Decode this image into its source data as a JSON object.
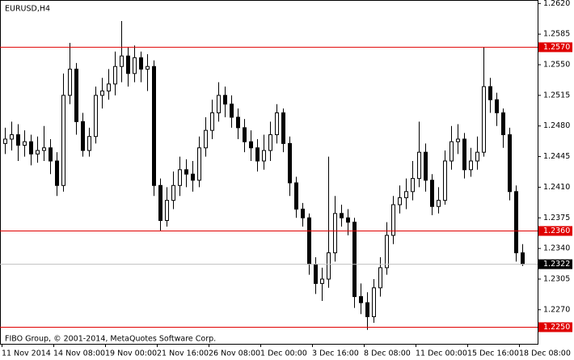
{
  "chart_data": {
    "type": "candlestick",
    "title": "EURUSD,H4",
    "footer": "FIBO Group, © 2001-2014, MetaQuotes Software Corp.",
    "categories": [
      "11 Nov 2014",
      null,
      null,
      null,
      null,
      null,
      null,
      null,
      "14 Nov 08:00",
      null,
      null,
      null,
      null,
      null,
      null,
      null,
      "19 Nov 00:00",
      null,
      null,
      null,
      null,
      null,
      null,
      null,
      "21 Nov 16:00",
      null,
      null,
      null,
      null,
      null,
      null,
      null,
      "26 Nov 08:00",
      null,
      null,
      null,
      null,
      null,
      null,
      null,
      "1 Dec 00:00",
      null,
      null,
      null,
      null,
      null,
      null,
      null,
      "3 Dec 16:00",
      null,
      null,
      null,
      null,
      null,
      null,
      null,
      "8 Dec 08:00",
      null,
      null,
      null,
      null,
      null,
      null,
      null,
      "11 Dec 00:00",
      null,
      null,
      null,
      null,
      null,
      null,
      null,
      "15 Dec 16:00",
      null,
      null,
      null,
      null,
      null,
      null,
      null,
      "18 Dec 08:00"
    ],
    "open": [
      1.246,
      1.2465,
      1.247,
      1.2458,
      1.2462,
      1.2448,
      1.2452,
      1.2455,
      1.244,
      1.2412,
      1.2515,
      1.2545,
      1.2485,
      1.2452,
      1.2468,
      1.2515,
      1.252,
      1.2528,
      1.2548,
      1.256,
      1.254,
      1.2558,
      1.2545,
      1.2548,
      1.2412,
      1.2372,
      1.2395,
      1.2412,
      1.243,
      1.2425,
      1.2418,
      1.2455,
      1.2475,
      1.2495,
      1.2515,
      1.2505,
      1.249,
      1.2478,
      1.2462,
      1.2455,
      1.244,
      1.2452,
      1.247,
      1.2495,
      1.246,
      1.2415,
      1.2385,
      1.2375,
      1.2322,
      1.23,
      1.2305,
      1.2335,
      1.238,
      1.2375,
      1.237,
      1.2285,
      1.2278,
      1.2262,
      1.2295,
      1.2318,
      1.2355,
      1.239,
      1.2398,
      1.2405,
      1.242,
      1.245,
      1.2418,
      1.2388,
      1.2395,
      1.244,
      1.2462,
      1.2465,
      1.243,
      1.244,
      1.245,
      1.2525,
      1.251,
      1.2495,
      1.247,
      1.2405,
      1.2335
    ],
    "high": [
      1.2478,
      1.2485,
      1.2482,
      1.2475,
      1.247,
      1.2468,
      1.248,
      1.2465,
      1.245,
      1.254,
      1.2575,
      1.2552,
      1.2495,
      1.2478,
      1.2525,
      1.2535,
      1.2545,
      1.2565,
      1.26,
      1.257,
      1.2572,
      1.2565,
      1.2562,
      1.2555,
      1.242,
      1.241,
      1.2428,
      1.2445,
      1.2442,
      1.244,
      1.2468,
      1.249,
      1.251,
      1.253,
      1.2525,
      1.2515,
      1.25,
      1.2488,
      1.2475,
      1.2465,
      1.247,
      1.2485,
      1.2505,
      1.25,
      1.2468,
      1.2422,
      1.2392,
      1.238,
      1.233,
      1.2318,
      1.2445,
      1.24,
      1.239,
      1.2385,
      1.2375,
      1.23,
      1.229,
      1.2305,
      1.233,
      1.237,
      1.24,
      1.2412,
      1.242,
      1.244,
      1.2485,
      1.246,
      1.2425,
      1.241,
      1.2452,
      1.248,
      1.2482,
      1.2472,
      1.2455,
      1.2468,
      1.257,
      1.2535,
      1.2518,
      1.25,
      1.2478,
      1.2412,
      1.2345
    ],
    "low": [
      1.2448,
      1.2452,
      1.244,
      1.2445,
      1.2435,
      1.2438,
      1.244,
      1.2425,
      1.24,
      1.2405,
      1.2505,
      1.247,
      1.2445,
      1.2445,
      1.246,
      1.25,
      1.251,
      1.2515,
      1.253,
      1.2525,
      1.253,
      1.253,
      1.252,
      1.24,
      1.236,
      1.2365,
      1.2385,
      1.24,
      1.241,
      1.2405,
      1.241,
      1.2445,
      1.2465,
      1.2485,
      1.249,
      1.2478,
      1.2465,
      1.245,
      1.244,
      1.2428,
      1.243,
      1.244,
      1.246,
      1.245,
      1.24,
      1.2375,
      1.2365,
      1.231,
      1.2288,
      1.228,
      1.2295,
      1.2325,
      1.2365,
      1.2355,
      1.2272,
      1.2265,
      1.2247,
      1.2255,
      1.2285,
      1.231,
      1.2345,
      1.238,
      1.2385,
      1.2395,
      1.241,
      1.2405,
      1.2378,
      1.238,
      1.239,
      1.243,
      1.2448,
      1.242,
      1.2422,
      1.243,
      1.2445,
      1.2495,
      1.248,
      1.2455,
      1.2395,
      1.2325,
      1.232
    ],
    "close": [
      1.2465,
      1.247,
      1.2458,
      1.2462,
      1.2448,
      1.2452,
      1.2455,
      1.244,
      1.2412,
      1.2515,
      1.2545,
      1.2485,
      1.2452,
      1.2468,
      1.2515,
      1.252,
      1.2528,
      1.2548,
      1.256,
      1.254,
      1.2558,
      1.2545,
      1.2548,
      1.2412,
      1.2372,
      1.2395,
      1.2412,
      1.243,
      1.2425,
      1.2418,
      1.2455,
      1.2475,
      1.2495,
      1.2515,
      1.2505,
      1.249,
      1.2478,
      1.2462,
      1.2455,
      1.244,
      1.2452,
      1.247,
      1.2495,
      1.246,
      1.2415,
      1.2385,
      1.2375,
      1.2322,
      1.23,
      1.2305,
      1.2335,
      1.238,
      1.2375,
      1.237,
      1.2285,
      1.2278,
      1.2262,
      1.2295,
      1.2318,
      1.2355,
      1.239,
      1.2398,
      1.2405,
      1.242,
      1.245,
      1.2418,
      1.2388,
      1.2395,
      1.244,
      1.2462,
      1.2465,
      1.243,
      1.244,
      1.245,
      1.2525,
      1.251,
      1.2495,
      1.247,
      1.2405,
      1.2335,
      1.2322
    ],
    "ylim": [
      1.2231,
      1.2624
    ],
    "yticks": [
      {
        "value": 1.262,
        "label": "1.2620"
      },
      {
        "value": 1.2585,
        "label": "1.2585"
      },
      {
        "value": 1.255,
        "label": "1.2550"
      },
      {
        "value": 1.2515,
        "label": "1.2515"
      },
      {
        "value": 1.248,
        "label": "1.2480"
      },
      {
        "value": 1.2445,
        "label": "1.2445"
      },
      {
        "value": 1.241,
        "label": "1.2410"
      },
      {
        "value": 1.2375,
        "label": "1.2375"
      },
      {
        "value": 1.234,
        "label": "1.2340"
      },
      {
        "value": 1.2305,
        "label": "1.2305"
      },
      {
        "value": 1.227,
        "label": "1.2270"
      }
    ],
    "levels": [
      {
        "value": 1.257,
        "label": "1.2570"
      },
      {
        "value": 1.236,
        "label": "1.2360"
      },
      {
        "value": 1.225,
        "label": "1.2250"
      }
    ],
    "level_color": "#e00000",
    "current_price": 1.2322,
    "current_color": "#c0c0c0",
    "candle_color": "#000000",
    "grid": false
  }
}
